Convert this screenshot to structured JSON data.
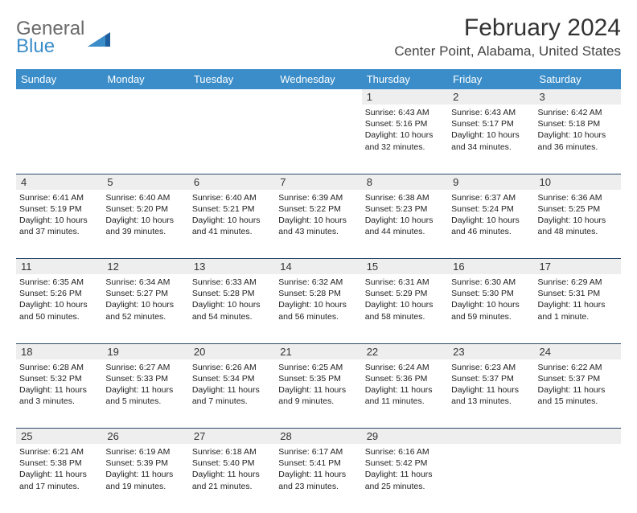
{
  "logo": {
    "line1": "General",
    "line2": "Blue",
    "color1": "#6a6a6a",
    "color2": "#3a8dc9"
  },
  "title": "February 2024",
  "location": "Center Point, Alabama, United States",
  "colors": {
    "header_bg": "#3a8dc9",
    "header_text": "#ffffff",
    "daynum_bg": "#eeeeee",
    "rule": "#2a4a6a",
    "body_text": "#222222"
  },
  "weekdays": [
    "Sunday",
    "Monday",
    "Tuesday",
    "Wednesday",
    "Thursday",
    "Friday",
    "Saturday"
  ],
  "first_weekday_index": 4,
  "days": [
    {
      "n": 1,
      "sunrise": "6:43 AM",
      "sunset": "5:16 PM",
      "daylight": "10 hours and 32 minutes."
    },
    {
      "n": 2,
      "sunrise": "6:43 AM",
      "sunset": "5:17 PM",
      "daylight": "10 hours and 34 minutes."
    },
    {
      "n": 3,
      "sunrise": "6:42 AM",
      "sunset": "5:18 PM",
      "daylight": "10 hours and 36 minutes."
    },
    {
      "n": 4,
      "sunrise": "6:41 AM",
      "sunset": "5:19 PM",
      "daylight": "10 hours and 37 minutes."
    },
    {
      "n": 5,
      "sunrise": "6:40 AM",
      "sunset": "5:20 PM",
      "daylight": "10 hours and 39 minutes."
    },
    {
      "n": 6,
      "sunrise": "6:40 AM",
      "sunset": "5:21 PM",
      "daylight": "10 hours and 41 minutes."
    },
    {
      "n": 7,
      "sunrise": "6:39 AM",
      "sunset": "5:22 PM",
      "daylight": "10 hours and 43 minutes."
    },
    {
      "n": 8,
      "sunrise": "6:38 AM",
      "sunset": "5:23 PM",
      "daylight": "10 hours and 44 minutes."
    },
    {
      "n": 9,
      "sunrise": "6:37 AM",
      "sunset": "5:24 PM",
      "daylight": "10 hours and 46 minutes."
    },
    {
      "n": 10,
      "sunrise": "6:36 AM",
      "sunset": "5:25 PM",
      "daylight": "10 hours and 48 minutes."
    },
    {
      "n": 11,
      "sunrise": "6:35 AM",
      "sunset": "5:26 PM",
      "daylight": "10 hours and 50 minutes."
    },
    {
      "n": 12,
      "sunrise": "6:34 AM",
      "sunset": "5:27 PM",
      "daylight": "10 hours and 52 minutes."
    },
    {
      "n": 13,
      "sunrise": "6:33 AM",
      "sunset": "5:28 PM",
      "daylight": "10 hours and 54 minutes."
    },
    {
      "n": 14,
      "sunrise": "6:32 AM",
      "sunset": "5:28 PM",
      "daylight": "10 hours and 56 minutes."
    },
    {
      "n": 15,
      "sunrise": "6:31 AM",
      "sunset": "5:29 PM",
      "daylight": "10 hours and 58 minutes."
    },
    {
      "n": 16,
      "sunrise": "6:30 AM",
      "sunset": "5:30 PM",
      "daylight": "10 hours and 59 minutes."
    },
    {
      "n": 17,
      "sunrise": "6:29 AM",
      "sunset": "5:31 PM",
      "daylight": "11 hours and 1 minute."
    },
    {
      "n": 18,
      "sunrise": "6:28 AM",
      "sunset": "5:32 PM",
      "daylight": "11 hours and 3 minutes."
    },
    {
      "n": 19,
      "sunrise": "6:27 AM",
      "sunset": "5:33 PM",
      "daylight": "11 hours and 5 minutes."
    },
    {
      "n": 20,
      "sunrise": "6:26 AM",
      "sunset": "5:34 PM",
      "daylight": "11 hours and 7 minutes."
    },
    {
      "n": 21,
      "sunrise": "6:25 AM",
      "sunset": "5:35 PM",
      "daylight": "11 hours and 9 minutes."
    },
    {
      "n": 22,
      "sunrise": "6:24 AM",
      "sunset": "5:36 PM",
      "daylight": "11 hours and 11 minutes."
    },
    {
      "n": 23,
      "sunrise": "6:23 AM",
      "sunset": "5:37 PM",
      "daylight": "11 hours and 13 minutes."
    },
    {
      "n": 24,
      "sunrise": "6:22 AM",
      "sunset": "5:37 PM",
      "daylight": "11 hours and 15 minutes."
    },
    {
      "n": 25,
      "sunrise": "6:21 AM",
      "sunset": "5:38 PM",
      "daylight": "11 hours and 17 minutes."
    },
    {
      "n": 26,
      "sunrise": "6:19 AM",
      "sunset": "5:39 PM",
      "daylight": "11 hours and 19 minutes."
    },
    {
      "n": 27,
      "sunrise": "6:18 AM",
      "sunset": "5:40 PM",
      "daylight": "11 hours and 21 minutes."
    },
    {
      "n": 28,
      "sunrise": "6:17 AM",
      "sunset": "5:41 PM",
      "daylight": "11 hours and 23 minutes."
    },
    {
      "n": 29,
      "sunrise": "6:16 AM",
      "sunset": "5:42 PM",
      "daylight": "11 hours and 25 minutes."
    }
  ],
  "labels": {
    "sunrise": "Sunrise:",
    "sunset": "Sunset:",
    "daylight": "Daylight:"
  }
}
